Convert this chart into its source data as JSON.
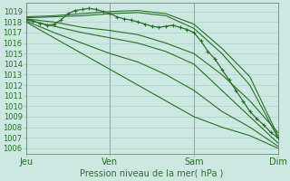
{
  "xlabel": "Pression niveau de la mer( hPa )",
  "xtick_labels": [
    "Jeu",
    "Ven",
    "Sam",
    "Dim"
  ],
  "xtick_positions": [
    0,
    24,
    48,
    72
  ],
  "ylim": [
    1005.5,
    1019.8
  ],
  "yticks": [
    1006,
    1007,
    1008,
    1009,
    1010,
    1011,
    1012,
    1013,
    1014,
    1015,
    1016,
    1017,
    1018,
    1019
  ],
  "xlim": [
    0,
    72
  ],
  "bg_color": "#cce8e0",
  "grid_color": "#a8ccc4",
  "line_color": "#2a6e2a",
  "lines": [
    [
      0,
      1018.5,
      8,
      1018.6,
      16,
      1018.8,
      24,
      1019.0,
      32,
      1019.1,
      40,
      1018.8,
      48,
      1017.8,
      56,
      1015.5,
      64,
      1012.8,
      72,
      1007.2
    ],
    [
      0,
      1018.4,
      8,
      1018.5,
      16,
      1018.6,
      24,
      1018.8,
      32,
      1018.9,
      40,
      1018.6,
      48,
      1017.4,
      56,
      1015.0,
      64,
      1012.0,
      72,
      1007.0
    ],
    [
      0,
      1018.3,
      8,
      1018.0,
      16,
      1017.5,
      24,
      1017.2,
      32,
      1016.8,
      40,
      1016.0,
      48,
      1015.0,
      56,
      1013.0,
      64,
      1010.5,
      72,
      1007.5
    ],
    [
      0,
      1018.2,
      8,
      1017.6,
      16,
      1017.0,
      24,
      1016.5,
      32,
      1016.0,
      40,
      1015.2,
      48,
      1014.0,
      56,
      1011.5,
      64,
      1009.0,
      72,
      1006.5
    ],
    [
      0,
      1018.1,
      8,
      1017.0,
      16,
      1016.0,
      24,
      1015.0,
      32,
      1014.2,
      40,
      1013.0,
      48,
      1011.5,
      56,
      1009.5,
      64,
      1008.0,
      72,
      1006.2
    ],
    [
      0,
      1018.0,
      8,
      1016.5,
      16,
      1015.0,
      24,
      1013.5,
      32,
      1012.0,
      40,
      1010.5,
      48,
      1009.0,
      56,
      1008.0,
      64,
      1007.2,
      72,
      1006.0
    ]
  ],
  "main_line": [
    0,
    1018.3,
    2,
    1018.1,
    4,
    1017.9,
    6,
    1017.7,
    8,
    1017.8,
    10,
    1018.2,
    12,
    1018.8,
    14,
    1019.1,
    16,
    1019.2,
    18,
    1019.3,
    20,
    1019.2,
    22,
    1019.0,
    24,
    1018.8,
    26,
    1018.5,
    28,
    1018.3,
    30,
    1018.2,
    32,
    1018.0,
    34,
    1017.8,
    36,
    1017.6,
    38,
    1017.5,
    40,
    1017.6,
    42,
    1017.7,
    44,
    1017.5,
    46,
    1017.3,
    48,
    1017.0,
    50,
    1016.2,
    52,
    1015.2,
    54,
    1014.5,
    56,
    1013.5,
    58,
    1012.5,
    60,
    1011.5,
    62,
    1010.5,
    64,
    1009.5,
    66,
    1008.8,
    68,
    1008.2,
    70,
    1007.5,
    72,
    1007.0
  ],
  "ylabel_fontsize": 6,
  "xlabel_fontsize": 7,
  "xtick_fontsize": 7
}
